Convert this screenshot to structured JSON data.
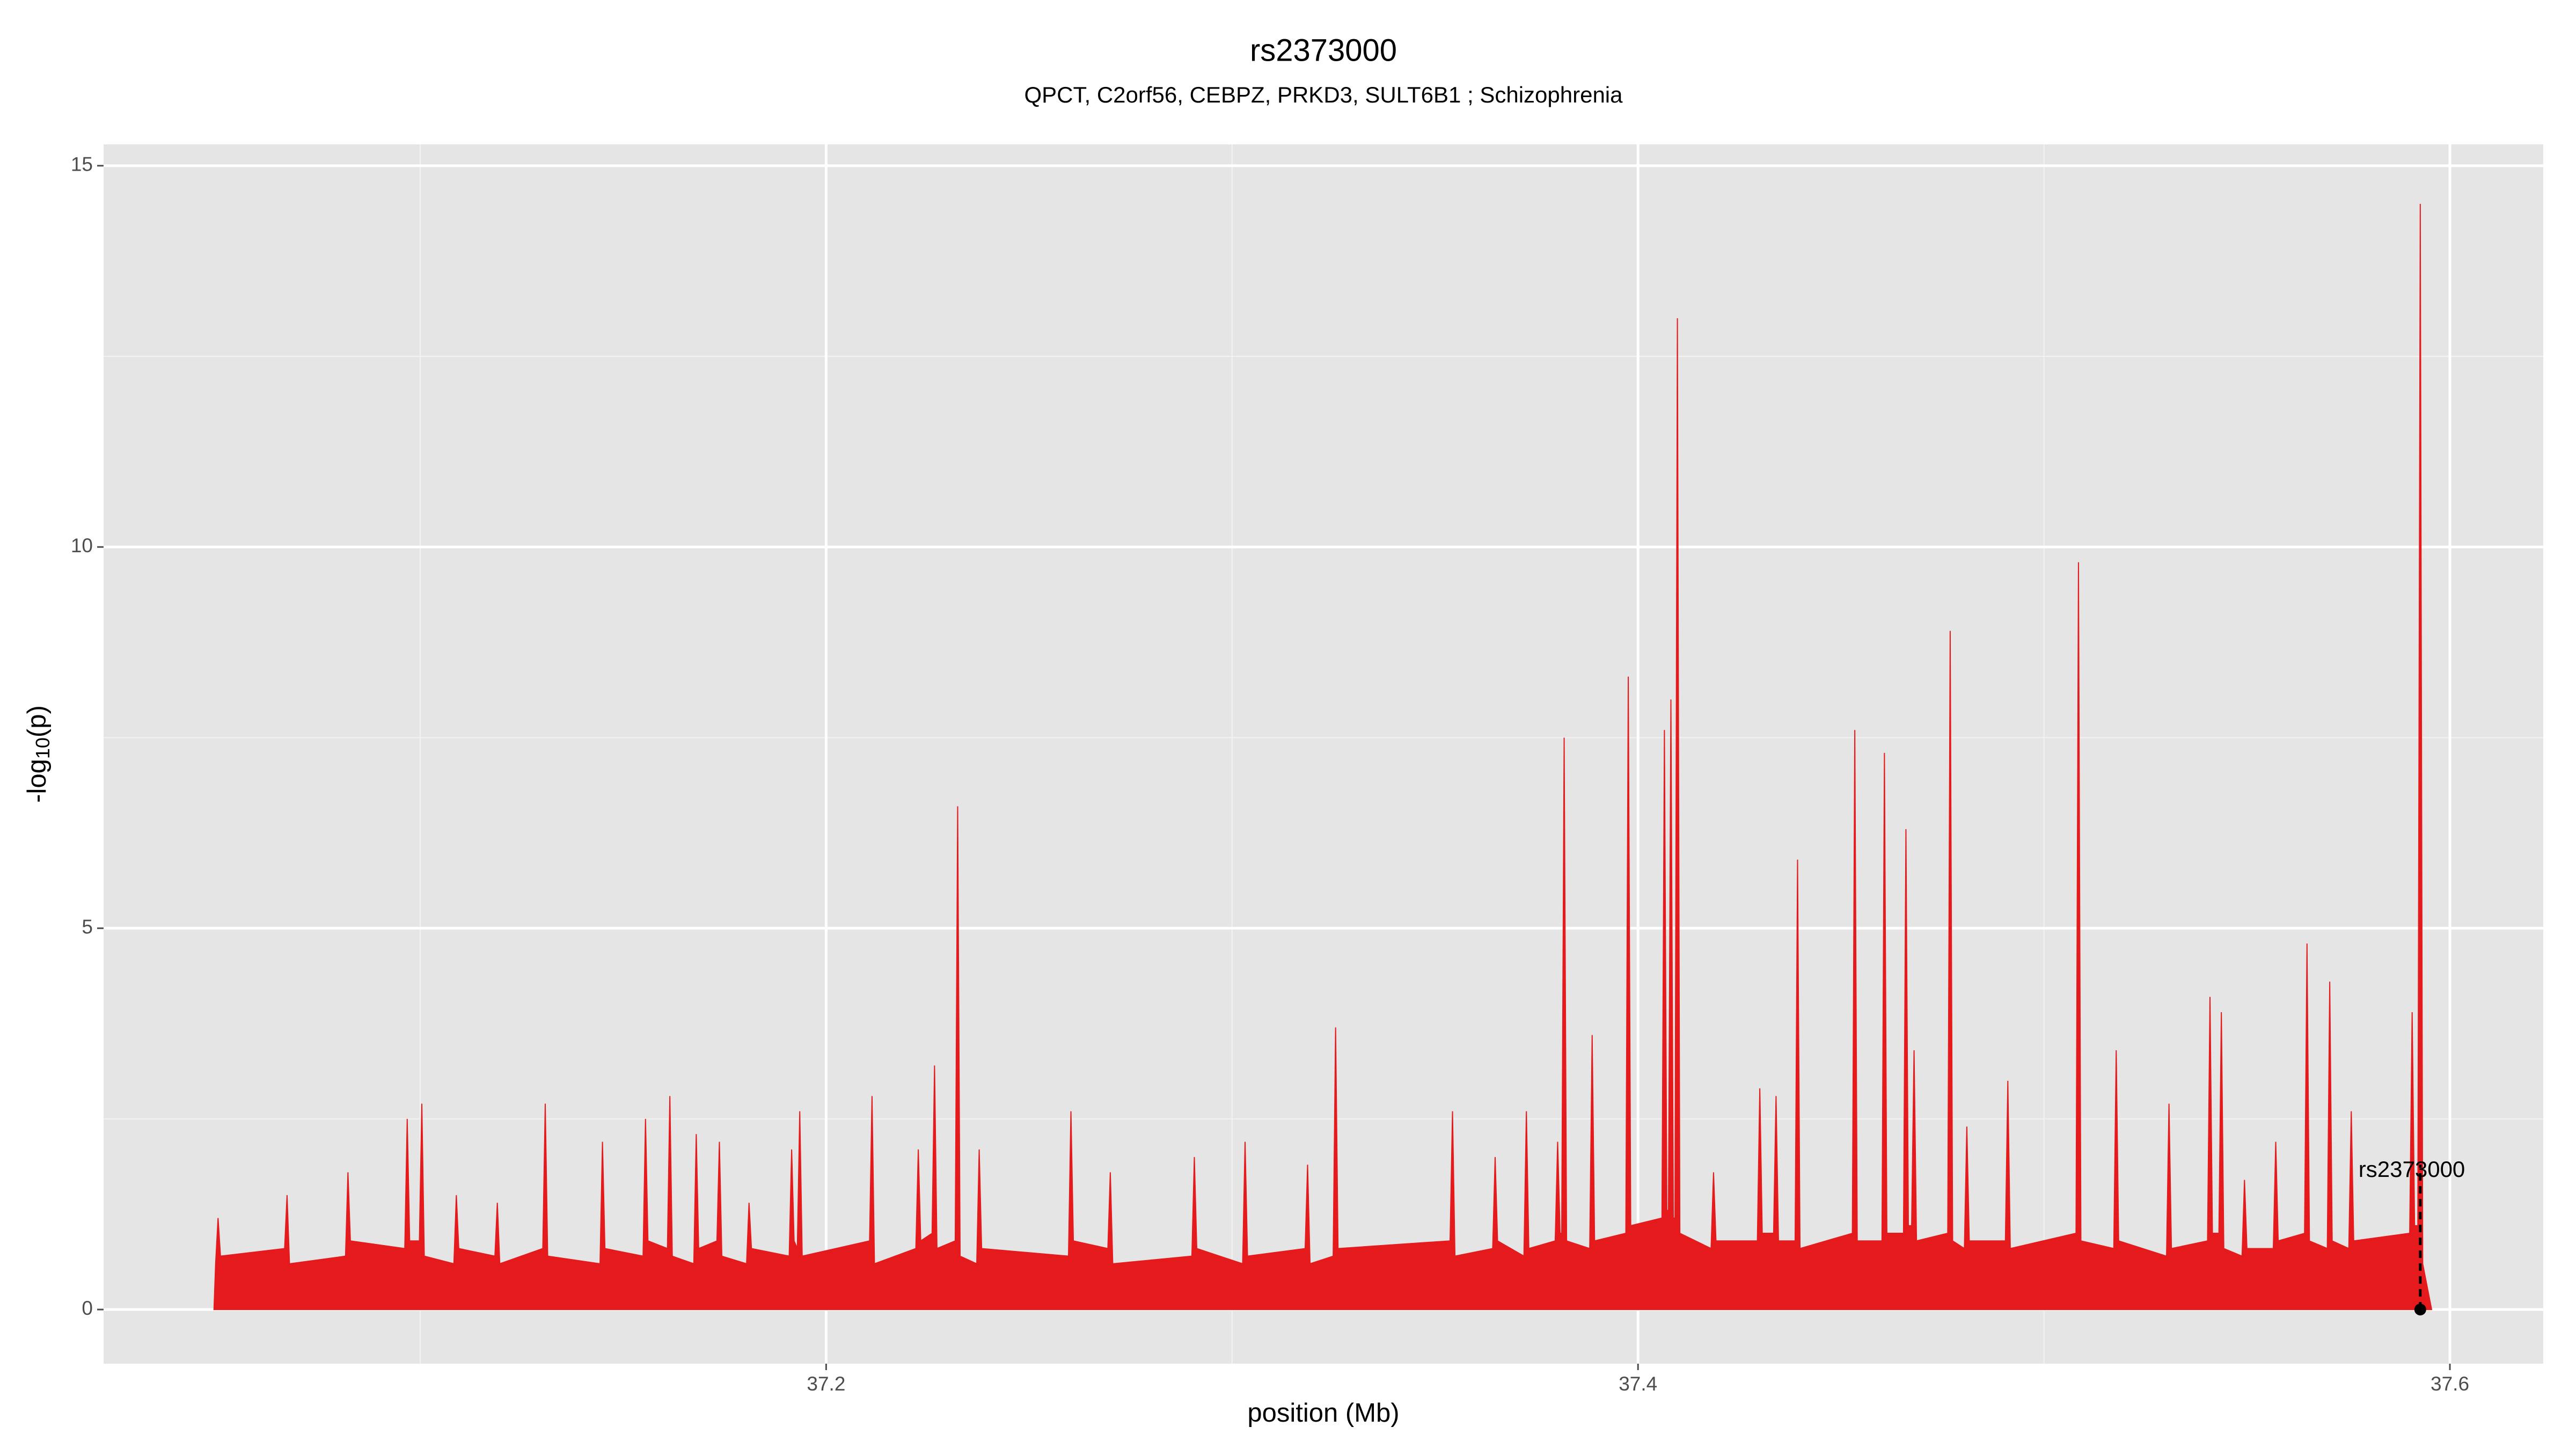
{
  "chart_data": {
    "type": "area",
    "title": "rs2373000",
    "subtitle": "QPCT, C2orf56, CEBPZ, PRKD3, SULT6B1 ; Schizophrenia",
    "x_label": "position (Mb)",
    "y_label_parts": [
      "-log",
      "10",
      "(p)"
    ],
    "color": "#e41a1c",
    "xlim": [
      37.022,
      37.623
    ],
    "ylim": [
      -0.71,
      15.28
    ],
    "xticks": [
      37.2,
      37.4,
      37.6
    ],
    "yticks": [
      0,
      5,
      10,
      15
    ],
    "minor_xticks": [
      37.1,
      37.3,
      37.5
    ],
    "minor_yticks": [
      2.5,
      7.5,
      12.5
    ],
    "grid": true,
    "highlight": {
      "label": "rs2373000",
      "x": 37.5927,
      "y": 0
    },
    "x": [
      37.0492,
      37.0496,
      37.0502,
      37.0508,
      37.0666,
      37.0672,
      37.0678,
      37.0816,
      37.0822,
      37.0828,
      37.0962,
      37.0968,
      37.0974,
      37.0998,
      37.1004,
      37.101,
      37.1083,
      37.1089,
      37.1095,
      37.1184,
      37.119,
      37.1196,
      37.1302,
      37.1308,
      37.1314,
      37.1443,
      37.1449,
      37.1455,
      37.1549,
      37.1555,
      37.1561,
      37.1609,
      37.1615,
      37.1621,
      37.1674,
      37.168,
      37.1686,
      37.1731,
      37.1737,
      37.1743,
      37.1804,
      37.181,
      37.1816,
      37.1909,
      37.1915,
      37.1921,
      37.1929,
      37.1935,
      37.1941,
      37.2107,
      37.2113,
      37.2119,
      37.2221,
      37.2227,
      37.2233,
      37.2261,
      37.2267,
      37.2273,
      37.2318,
      37.2324,
      37.233,
      37.2371,
      37.2377,
      37.2383,
      37.2597,
      37.2603,
      37.2609,
      37.2694,
      37.27,
      37.2706,
      37.2901,
      37.2907,
      37.2913,
      37.3026,
      37.3032,
      37.3038,
      37.318,
      37.3186,
      37.3192,
      37.3249,
      37.3255,
      37.3261,
      37.3537,
      37.3543,
      37.3549,
      37.3642,
      37.3648,
      37.3654,
      37.3719,
      37.3725,
      37.3731,
      37.3796,
      37.3802,
      37.3808,
      37.3812,
      37.3818,
      37.3824,
      37.3881,
      37.3887,
      37.3893,
      37.397,
      37.3976,
      37.3982,
      37.4059,
      37.4065,
      37.4071,
      37.4075,
      37.4081,
      37.4087,
      37.4091,
      37.4097,
      37.4103,
      37.418,
      37.4186,
      37.4192,
      37.4294,
      37.43,
      37.4306,
      37.4334,
      37.434,
      37.4346,
      37.4387,
      37.4393,
      37.4399,
      37.4528,
      37.4534,
      37.454,
      37.4601,
      37.4607,
      37.4613,
      37.4654,
      37.466,
      37.4666,
      37.4674,
      37.468,
      37.4686,
      37.4763,
      37.4769,
      37.4775,
      37.4804,
      37.481,
      37.4816,
      37.4905,
      37.4911,
      37.4917,
      37.5079,
      37.5085,
      37.5091,
      37.5172,
      37.5178,
      37.5184,
      37.5302,
      37.5308,
      37.5314,
      37.5403,
      37.5409,
      37.5415,
      37.5431,
      37.5437,
      37.5443,
      37.5488,
      37.5494,
      37.55,
      37.5565,
      37.5571,
      37.5577,
      37.5642,
      37.5648,
      37.5654,
      37.5698,
      37.5704,
      37.571,
      37.5751,
      37.5757,
      37.5763,
      37.5901,
      37.5907,
      37.5913,
      37.5921,
      37.5927,
      37.5933,
      37.5955
    ],
    "values": [
      0,
      0.6,
      1.2,
      0.7,
      0.8,
      1.5,
      0.6,
      0.7,
      1.8,
      0.9,
      0.8,
      2.5,
      0.9,
      0.9,
      2.7,
      0.7,
      0.6,
      1.5,
      0.8,
      0.7,
      1.4,
      0.6,
      0.8,
      2.7,
      0.7,
      0.6,
      2.2,
      0.8,
      0.7,
      2.5,
      0.9,
      0.8,
      2.8,
      0.7,
      0.6,
      2.3,
      0.8,
      0.9,
      2.2,
      0.7,
      0.6,
      1.4,
      0.8,
      0.7,
      2.1,
      0.9,
      0.8,
      2.6,
      0.7,
      0.9,
      2.8,
      0.6,
      0.8,
      2.1,
      0.9,
      1.0,
      3.2,
      0.8,
      0.9,
      6.6,
      0.7,
      0.6,
      2.1,
      0.8,
      0.7,
      2.6,
      0.9,
      0.8,
      1.8,
      0.6,
      0.7,
      2.0,
      0.8,
      0.6,
      2.2,
      0.7,
      0.8,
      1.9,
      0.6,
      0.7,
      3.7,
      0.8,
      0.9,
      2.6,
      0.7,
      0.8,
      2.0,
      0.9,
      0.7,
      2.6,
      0.8,
      0.9,
      2.2,
      1.0,
      1.0,
      7.5,
      0.9,
      0.8,
      3.6,
      0.9,
      1.0,
      8.3,
      1.1,
      1.2,
      7.6,
      1.3,
      1.3,
      8.0,
      1.2,
      1.2,
      13.0,
      1.0,
      0.8,
      1.8,
      0.9,
      0.9,
      2.9,
      1.0,
      1.0,
      2.8,
      0.9,
      0.9,
      5.9,
      0.8,
      1.0,
      7.6,
      0.9,
      0.9,
      7.3,
      1.0,
      1.0,
      6.3,
      1.1,
      1.1,
      3.4,
      0.9,
      1.0,
      8.9,
      0.9,
      0.8,
      2.4,
      0.9,
      0.9,
      3.0,
      0.8,
      1.0,
      9.8,
      0.9,
      0.8,
      3.4,
      0.9,
      0.7,
      2.7,
      0.8,
      0.9,
      4.1,
      1.0,
      1.0,
      3.9,
      0.8,
      0.7,
      1.7,
      0.8,
      0.8,
      2.2,
      0.9,
      1.0,
      4.8,
      0.9,
      0.8,
      4.3,
      0.9,
      0.8,
      2.6,
      0.9,
      1.0,
      3.9,
      1.1,
      1.1,
      14.5,
      0.6,
      0
    ]
  }
}
